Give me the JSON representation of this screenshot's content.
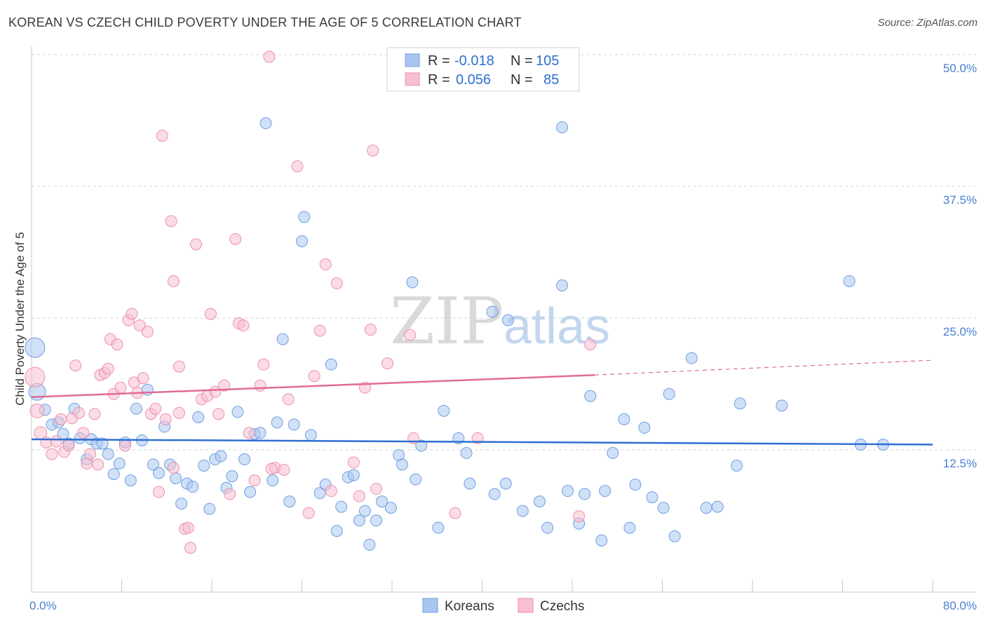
{
  "title": "KOREAN VS CZECH CHILD POVERTY UNDER THE AGE OF 5 CORRELATION CHART",
  "source": "Source: ZipAtlas.com",
  "watermark": {
    "zip": "ZIP",
    "atlas": "atlas"
  },
  "colors": {
    "korean_fill": "#a9c6f0",
    "korean_stroke": "#6f9fe0",
    "korean_line": "#2e6fd1",
    "czech_fill": "#f7bfd0",
    "czech_stroke": "#ec91ad",
    "czech_line": "#e06b93",
    "tick_label": "#4a7fd0",
    "grid": "#d6d6d6"
  },
  "stats_legend": {
    "rows": [
      {
        "r_label": "R =",
        "r_value": "-0.018",
        "n_label": "N =",
        "n_value": "105"
      },
      {
        "r_label": "R =",
        "r_value": "0.056",
        "n_label": "N =",
        "n_value": "85"
      }
    ]
  },
  "chart_data": {
    "type": "scatter",
    "title": "KOREAN VS CZECH CHILD POVERTY UNDER THE AGE OF 5 CORRELATION CHART",
    "xlabel": "",
    "ylabel": "Child Poverty Under the Age of 5",
    "xlim": [
      0,
      80
    ],
    "ylim": [
      0,
      50
    ],
    "x_tick_labels": [
      "0.0%",
      "80.0%"
    ],
    "y_ticks": [
      12.5,
      25.0,
      37.5,
      50.0
    ],
    "y_tick_labels": [
      "12.5%",
      "25.0%",
      "37.5%",
      "50.0%"
    ],
    "grid": true,
    "legend_position": "bottom-center",
    "series": [
      {
        "name": "Koreans",
        "r": -0.018,
        "n": 105,
        "trend": {
          "x0": 0,
          "y0": 13.5,
          "x1": 80,
          "y1": 13.0
        },
        "points": [
          [
            0.3,
            22.2,
            14
          ],
          [
            0.5,
            18.0,
            12
          ],
          [
            1.2,
            16.3,
            8
          ],
          [
            1.8,
            14.9,
            8
          ],
          [
            2.4,
            15.1,
            8
          ],
          [
            2.8,
            14.0,
            8
          ],
          [
            3.3,
            13.1,
            8
          ],
          [
            3.8,
            16.4,
            8
          ],
          [
            4.3,
            13.6,
            8
          ],
          [
            4.9,
            11.6,
            8
          ],
          [
            5.3,
            13.5,
            8
          ],
          [
            5.8,
            13.1,
            8
          ],
          [
            6.3,
            13.1,
            8
          ],
          [
            6.8,
            12.1,
            8
          ],
          [
            7.3,
            10.2,
            8
          ],
          [
            7.8,
            11.2,
            8
          ],
          [
            8.3,
            13.2,
            8
          ],
          [
            8.8,
            9.6,
            8
          ],
          [
            9.3,
            16.4,
            8
          ],
          [
            9.8,
            13.4,
            8
          ],
          [
            10.3,
            18.2,
            8
          ],
          [
            10.8,
            11.1,
            8
          ],
          [
            11.3,
            10.3,
            8
          ],
          [
            11.8,
            14.7,
            8
          ],
          [
            12.3,
            11.1,
            8
          ],
          [
            12.8,
            9.8,
            8
          ],
          [
            13.3,
            7.4,
            8
          ],
          [
            13.8,
            9.3,
            8
          ],
          [
            14.3,
            9.0,
            8
          ],
          [
            14.8,
            15.6,
            8
          ],
          [
            15.3,
            11.0,
            8
          ],
          [
            15.8,
            6.9,
            8
          ],
          [
            16.3,
            11.6,
            8
          ],
          [
            16.8,
            11.9,
            8
          ],
          [
            17.3,
            8.9,
            8
          ],
          [
            17.8,
            10.0,
            8
          ],
          [
            18.3,
            16.1,
            8
          ],
          [
            18.9,
            11.6,
            8
          ],
          [
            19.4,
            8.5,
            8
          ],
          [
            19.8,
            14.0,
            8
          ],
          [
            20.3,
            14.1,
            8
          ],
          [
            20.8,
            43.5,
            8
          ],
          [
            21.4,
            9.6,
            8
          ],
          [
            21.8,
            15.1,
            8
          ],
          [
            22.3,
            23.0,
            8
          ],
          [
            22.9,
            7.6,
            8
          ],
          [
            23.3,
            14.9,
            8
          ],
          [
            24.0,
            32.3,
            8
          ],
          [
            24.2,
            34.6,
            8
          ],
          [
            24.8,
            13.9,
            8
          ],
          [
            25.6,
            8.4,
            8
          ],
          [
            26.1,
            9.2,
            8
          ],
          [
            26.6,
            20.6,
            8
          ],
          [
            27.1,
            4.8,
            8
          ],
          [
            27.5,
            7.1,
            8
          ],
          [
            28.1,
            9.9,
            8
          ],
          [
            28.6,
            10.1,
            8
          ],
          [
            29.1,
            5.8,
            8
          ],
          [
            29.6,
            6.7,
            8
          ],
          [
            30.0,
            3.5,
            8
          ],
          [
            30.6,
            5.8,
            8
          ],
          [
            31.1,
            7.6,
            8
          ],
          [
            31.9,
            7.0,
            8
          ],
          [
            32.6,
            12.0,
            8
          ],
          [
            32.9,
            11.1,
            8
          ],
          [
            33.8,
            28.4,
            8
          ],
          [
            34.1,
            9.7,
            8
          ],
          [
            34.6,
            12.9,
            8
          ],
          [
            36.1,
            5.1,
            8
          ],
          [
            36.6,
            16.2,
            8
          ],
          [
            37.9,
            13.6,
            8
          ],
          [
            38.6,
            12.2,
            8
          ],
          [
            38.9,
            9.3,
            8
          ],
          [
            40.9,
            25.6,
            8
          ],
          [
            41.1,
            8.3,
            8
          ],
          [
            42.1,
            9.3,
            8
          ],
          [
            42.3,
            24.8,
            8
          ],
          [
            43.6,
            6.7,
            8
          ],
          [
            45.1,
            7.6,
            8
          ],
          [
            45.8,
            5.1,
            8
          ],
          [
            47.1,
            43.1,
            8
          ],
          [
            47.1,
            28.1,
            8
          ],
          [
            47.6,
            8.6,
            8
          ],
          [
            48.6,
            5.5,
            8
          ],
          [
            49.1,
            8.3,
            8
          ],
          [
            49.6,
            17.6,
            8
          ],
          [
            50.6,
            3.9,
            8
          ],
          [
            50.9,
            8.6,
            8
          ],
          [
            51.6,
            12.2,
            8
          ],
          [
            52.6,
            15.4,
            8
          ],
          [
            53.1,
            5.1,
            8
          ],
          [
            53.6,
            9.2,
            8
          ],
          [
            54.4,
            14.6,
            8
          ],
          [
            55.1,
            8.0,
            8
          ],
          [
            56.1,
            7.0,
            8
          ],
          [
            56.6,
            17.8,
            8
          ],
          [
            57.1,
            4.3,
            8
          ],
          [
            58.6,
            21.2,
            8
          ],
          [
            59.9,
            7.0,
            8
          ],
          [
            60.9,
            7.1,
            8
          ],
          [
            62.6,
            11.0,
            8
          ],
          [
            62.9,
            16.9,
            8
          ],
          [
            66.6,
            16.7,
            8
          ],
          [
            72.6,
            28.5,
            8
          ],
          [
            73.6,
            13.0,
            8
          ],
          [
            75.6,
            13.0,
            8
          ]
        ]
      },
      {
        "name": "Czechs",
        "r": 0.056,
        "n": 85,
        "trend": {
          "x0": 0,
          "y0": 17.5,
          "x1": 50,
          "y1": 19.6,
          "dash_to": {
            "x": 80,
            "y": 21.0
          }
        },
        "points": [
          [
            0.3,
            19.4,
            14
          ],
          [
            0.5,
            16.2,
            10
          ],
          [
            0.8,
            14.1,
            9
          ],
          [
            1.3,
            13.2,
            8
          ],
          [
            1.8,
            12.1,
            8
          ],
          [
            2.2,
            13.3,
            8
          ],
          [
            2.6,
            15.4,
            8
          ],
          [
            2.9,
            12.3,
            8
          ],
          [
            3.3,
            12.9,
            8
          ],
          [
            3.6,
            15.5,
            8
          ],
          [
            3.9,
            20.5,
            8
          ],
          [
            4.2,
            16.0,
            8
          ],
          [
            4.6,
            14.1,
            8
          ],
          [
            4.9,
            11.2,
            8
          ],
          [
            5.2,
            12.1,
            8
          ],
          [
            5.6,
            15.9,
            8
          ],
          [
            5.9,
            11.1,
            8
          ],
          [
            6.1,
            19.6,
            8
          ],
          [
            6.5,
            19.8,
            8
          ],
          [
            6.8,
            20.2,
            8
          ],
          [
            7.0,
            23.0,
            8
          ],
          [
            7.3,
            17.8,
            8
          ],
          [
            7.6,
            22.5,
            8
          ],
          [
            7.9,
            18.4,
            8
          ],
          [
            8.3,
            12.9,
            8
          ],
          [
            8.6,
            24.8,
            8
          ],
          [
            8.9,
            25.4,
            8
          ],
          [
            9.1,
            18.9,
            8
          ],
          [
            9.4,
            17.9,
            8
          ],
          [
            9.6,
            24.3,
            8
          ],
          [
            9.9,
            19.3,
            8
          ],
          [
            10.3,
            23.7,
            8
          ],
          [
            10.6,
            15.9,
            8
          ],
          [
            11.0,
            16.4,
            8
          ],
          [
            11.3,
            8.5,
            8
          ],
          [
            11.6,
            42.3,
            8
          ],
          [
            11.9,
            15.4,
            8
          ],
          [
            12.4,
            34.2,
            8
          ],
          [
            12.6,
            28.5,
            8
          ],
          [
            13.1,
            20.4,
            8
          ],
          [
            13.6,
            5.0,
            8
          ],
          [
            13.9,
            5.1,
            8
          ],
          [
            14.1,
            3.2,
            8
          ],
          [
            14.6,
            32.0,
            8
          ],
          [
            15.1,
            17.3,
            8
          ],
          [
            15.6,
            17.6,
            8
          ],
          [
            15.9,
            25.4,
            8
          ],
          [
            16.3,
            18.0,
            8
          ],
          [
            16.6,
            15.9,
            8
          ],
          [
            17.1,
            18.6,
            8
          ],
          [
            17.6,
            8.3,
            8
          ],
          [
            18.1,
            32.5,
            8
          ],
          [
            18.4,
            24.5,
            8
          ],
          [
            18.8,
            24.3,
            8
          ],
          [
            19.3,
            14.1,
            8
          ],
          [
            19.8,
            9.6,
            8
          ],
          [
            20.3,
            18.6,
            8
          ],
          [
            21.1,
            49.8,
            8
          ],
          [
            21.6,
            10.8,
            8
          ],
          [
            22.4,
            10.6,
            8
          ],
          [
            22.8,
            17.3,
            8
          ],
          [
            23.6,
            39.4,
            8
          ],
          [
            24.6,
            6.5,
            8
          ],
          [
            25.1,
            19.5,
            8
          ],
          [
            25.6,
            23.8,
            8
          ],
          [
            26.1,
            30.1,
            8
          ],
          [
            26.6,
            8.6,
            8
          ],
          [
            27.1,
            28.3,
            8
          ],
          [
            28.6,
            11.3,
            8
          ],
          [
            29.1,
            8.1,
            8
          ],
          [
            29.6,
            18.4,
            8
          ],
          [
            30.1,
            23.9,
            8
          ],
          [
            30.6,
            8.8,
            8
          ],
          [
            31.6,
            20.7,
            8
          ],
          [
            33.6,
            23.4,
            8
          ],
          [
            33.9,
            13.6,
            8
          ],
          [
            37.6,
            6.5,
            8
          ],
          [
            39.6,
            13.6,
            8
          ],
          [
            48.6,
            6.2,
            8
          ],
          [
            49.6,
            22.5,
            8
          ],
          [
            30.3,
            40.9,
            8
          ],
          [
            13.1,
            16.0,
            8
          ],
          [
            12.6,
            10.8,
            8
          ],
          [
            20.6,
            20.6,
            8
          ],
          [
            21.3,
            10.7,
            8
          ]
        ]
      }
    ]
  }
}
